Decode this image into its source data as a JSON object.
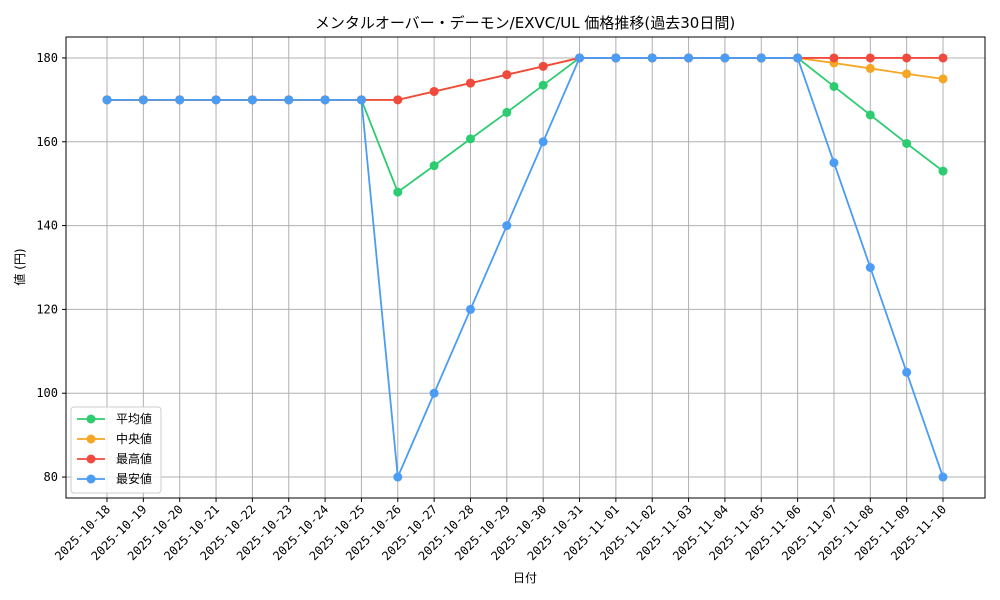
{
  "chart_data": {
    "type": "line",
    "title": "メンタルオーバー・デーモン/EXVC/UL 価格推移(過去30日間)",
    "xlabel": "日付",
    "ylabel": "値 (円)",
    "ylim": [
      75,
      185
    ],
    "yticks": [
      80,
      100,
      120,
      140,
      160,
      180
    ],
    "grid": true,
    "legend_position": "lower-left",
    "categories": [
      "2025-10-18",
      "2025-10-19",
      "2025-10-20",
      "2025-10-21",
      "2025-10-22",
      "2025-10-23",
      "2025-10-24",
      "2025-10-25",
      "2025-10-26",
      "2025-10-27",
      "2025-10-28",
      "2025-10-29",
      "2025-10-30",
      "2025-10-31",
      "2025-11-01",
      "2025-11-02",
      "2025-11-03",
      "2025-11-04",
      "2025-11-05",
      "2025-11-06",
      "2025-11-07",
      "2025-11-08",
      "2025-11-09",
      "2025-11-10"
    ],
    "series": [
      {
        "name": "平均値",
        "color": "#2ecc71",
        "values": [
          170,
          170,
          170,
          170,
          170,
          170,
          170,
          170,
          148,
          154.3,
          160.7,
          167,
          173.5,
          180,
          180,
          180,
          180,
          180,
          180,
          180,
          173.2,
          166.4,
          159.6,
          153
        ]
      },
      {
        "name": "中央値",
        "color": "#f5a623",
        "values": [
          170,
          170,
          170,
          170,
          170,
          170,
          170,
          170,
          170,
          172,
          174,
          176,
          178,
          180,
          180,
          180,
          180,
          180,
          180,
          180,
          178.8,
          177.5,
          176.2,
          175
        ]
      },
      {
        "name": "最高値",
        "color": "#f04a3e",
        "values": [
          170,
          170,
          170,
          170,
          170,
          170,
          170,
          170,
          170,
          172,
          174,
          176,
          178,
          180,
          180,
          180,
          180,
          180,
          180,
          180,
          180,
          180,
          180,
          180
        ]
      },
      {
        "name": "最安値",
        "color": "#4b9cf5",
        "values": [
          170,
          170,
          170,
          170,
          170,
          170,
          170,
          170,
          80,
          100,
          120,
          140,
          160,
          180,
          180,
          180,
          180,
          180,
          180,
          180,
          155,
          130,
          105,
          80
        ]
      }
    ]
  }
}
